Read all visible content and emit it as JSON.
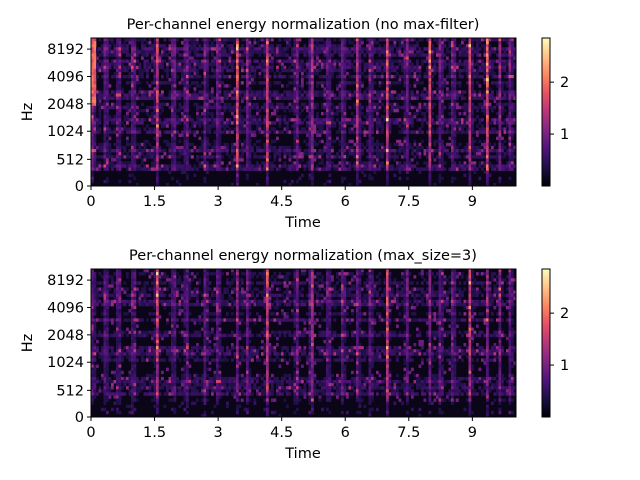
{
  "chart_data": [
    {
      "type": "heatmap",
      "title": "Per-channel energy normalization (no max-filter)",
      "xlabel": "Time",
      "ylabel": "Hz",
      "xlim": [
        0,
        10.03
      ],
      "x_ticks": [
        "0",
        "1.5",
        "3",
        "4.5",
        "6",
        "7.5",
        "9"
      ],
      "x_tick_values": [
        0,
        1.5,
        3,
        4.5,
        6,
        7.5,
        9
      ],
      "y_scale": "log",
      "y_ticks": [
        "0",
        "512",
        "1024",
        "2048",
        "4096",
        "8192"
      ],
      "colormap": "magma",
      "colorbar": {
        "ticks": [
          "1",
          "2"
        ],
        "tick_values": [
          1,
          2
        ],
        "vmin": 0,
        "vmax": 2.85
      },
      "vertical_onsets": [
        0.05,
        0.35,
        0.65,
        1.0,
        1.55,
        1.95,
        2.25,
        2.7,
        3.0,
        3.45,
        3.7,
        4.15,
        4.85,
        5.2,
        5.6,
        5.95,
        6.3,
        6.6,
        7.0,
        7.45,
        8.0,
        8.25,
        8.55,
        8.95,
        9.35,
        9.65,
        9.9
      ],
      "strong_onsets": [
        0.05,
        1.55,
        3.45,
        4.15,
        5.2,
        6.3,
        7.0,
        8.0,
        8.95,
        9.35
      ],
      "low_strength_bias": true
    },
    {
      "type": "heatmap",
      "title": "Per-channel energy normalization (max_size=3)",
      "xlabel": "Time",
      "ylabel": "Hz",
      "xlim": [
        0,
        10.03
      ],
      "x_ticks": [
        "0",
        "1.5",
        "3",
        "4.5",
        "6",
        "7.5",
        "9"
      ],
      "x_tick_values": [
        0,
        1.5,
        3,
        4.5,
        6,
        7.5,
        9
      ],
      "y_scale": "log",
      "y_ticks": [
        "0",
        "512",
        "1024",
        "2048",
        "4096",
        "8192"
      ],
      "colormap": "magma",
      "colorbar": {
        "ticks": [
          "1",
          "2"
        ],
        "tick_values": [
          1,
          2
        ],
        "vmin": 0,
        "vmax": 2.85
      },
      "vertical_onsets": [
        0.05,
        0.35,
        0.65,
        1.0,
        1.55,
        1.95,
        2.25,
        2.7,
        3.0,
        3.45,
        3.7,
        4.15,
        4.85,
        5.2,
        5.6,
        5.95,
        6.3,
        6.6,
        7.0,
        7.45,
        8.0,
        8.25,
        8.55,
        8.95,
        9.35,
        9.65,
        9.9
      ],
      "strong_onsets": [
        1.55,
        4.15,
        5.2,
        7.0,
        8.95
      ],
      "low_strength_bias": false
    }
  ],
  "colors": {
    "magma": [
      "#000004",
      "#1c1044",
      "#4f127b",
      "#812581",
      "#b5367a",
      "#e55064",
      "#fb8761",
      "#fec287",
      "#fcfdbf"
    ]
  }
}
